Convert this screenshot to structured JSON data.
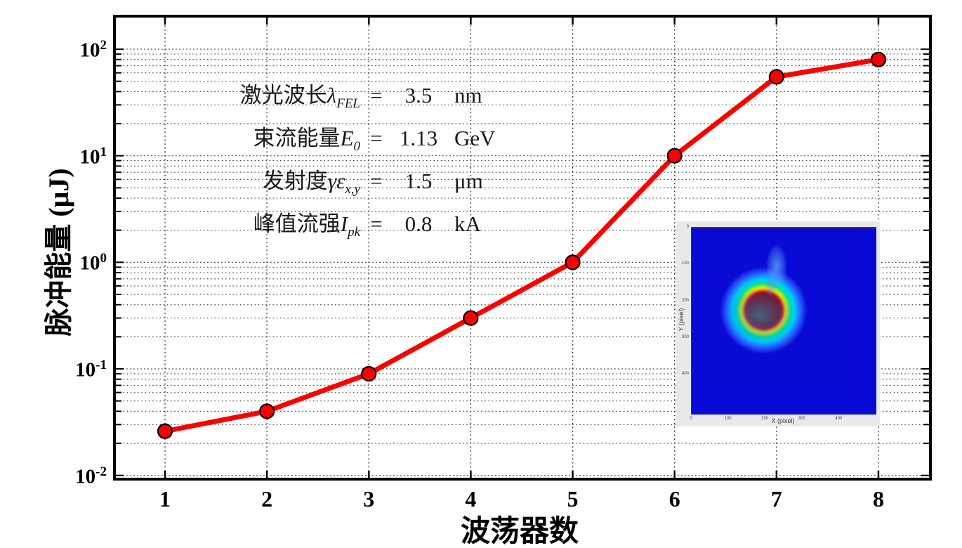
{
  "chart_data": {
    "type": "line",
    "title": "",
    "xlabel": "波荡器数",
    "ylabel": "脉冲能量 (μJ)",
    "x": [
      1,
      2,
      3,
      4,
      5,
      6,
      7,
      8
    ],
    "series": [
      {
        "name": "脉冲能量",
        "values": [
          0.026,
          0.04,
          0.09,
          0.3,
          1.0,
          10,
          55,
          80
        ]
      }
    ],
    "x_ticks": [
      "1",
      "2",
      "3",
      "4",
      "5",
      "6",
      "7",
      "8"
    ],
    "y_tick_exponents": [
      2,
      1,
      0,
      -1,
      -2
    ],
    "yscale": "log",
    "ylim": [
      0.0095,
      200
    ],
    "xlim": [
      0.52,
      8.5
    ],
    "grid": "dotted horizontal major+minor log gridlines, dotted vertical gridlines at each integer x",
    "legend": "none",
    "line_color": "#fb0000",
    "marker": {
      "shape": "circle",
      "fill": "#fb0000",
      "edge": "#000000",
      "radius_px": 10
    }
  },
  "annotation": {
    "lines": [
      {
        "label": "激光波长",
        "symbol": "λ",
        "subscript": "FEL",
        "eq": "=",
        "value": "3.5",
        "unit": "nm"
      },
      {
        "label": "束流能量",
        "symbol": "E",
        "subscript": "0",
        "eq": "=",
        "value": "1.13",
        "unit": "GeV"
      },
      {
        "label": "发射度",
        "symbol": "γε",
        "subscript": "x,y",
        "eq": "=",
        "value": "1.5",
        "unit": "μm"
      },
      {
        "label": "峰值流强",
        "symbol": "I",
        "subscript": "pk",
        "eq": "=",
        "value": "0.8",
        "unit": "kA"
      }
    ]
  },
  "inset": {
    "xlabel": "X (pixel)",
    "ylabel": "Y (pixel)",
    "x_ticks": [
      "0",
      "100",
      "200",
      "300",
      "400"
    ],
    "y_ticks": [
      "0",
      "100",
      "200",
      "300",
      "400"
    ],
    "colors": {
      "panel": "#e9e9e7",
      "background": "#0a0ad6",
      "core": "#8b0000",
      "ring": "#ffd400",
      "halo": "#00c3ff"
    },
    "content": "beam profile: dark-red circular spot with yellow/green/cyan halo near (200,225), faint plume extending up-right, on blue background"
  }
}
